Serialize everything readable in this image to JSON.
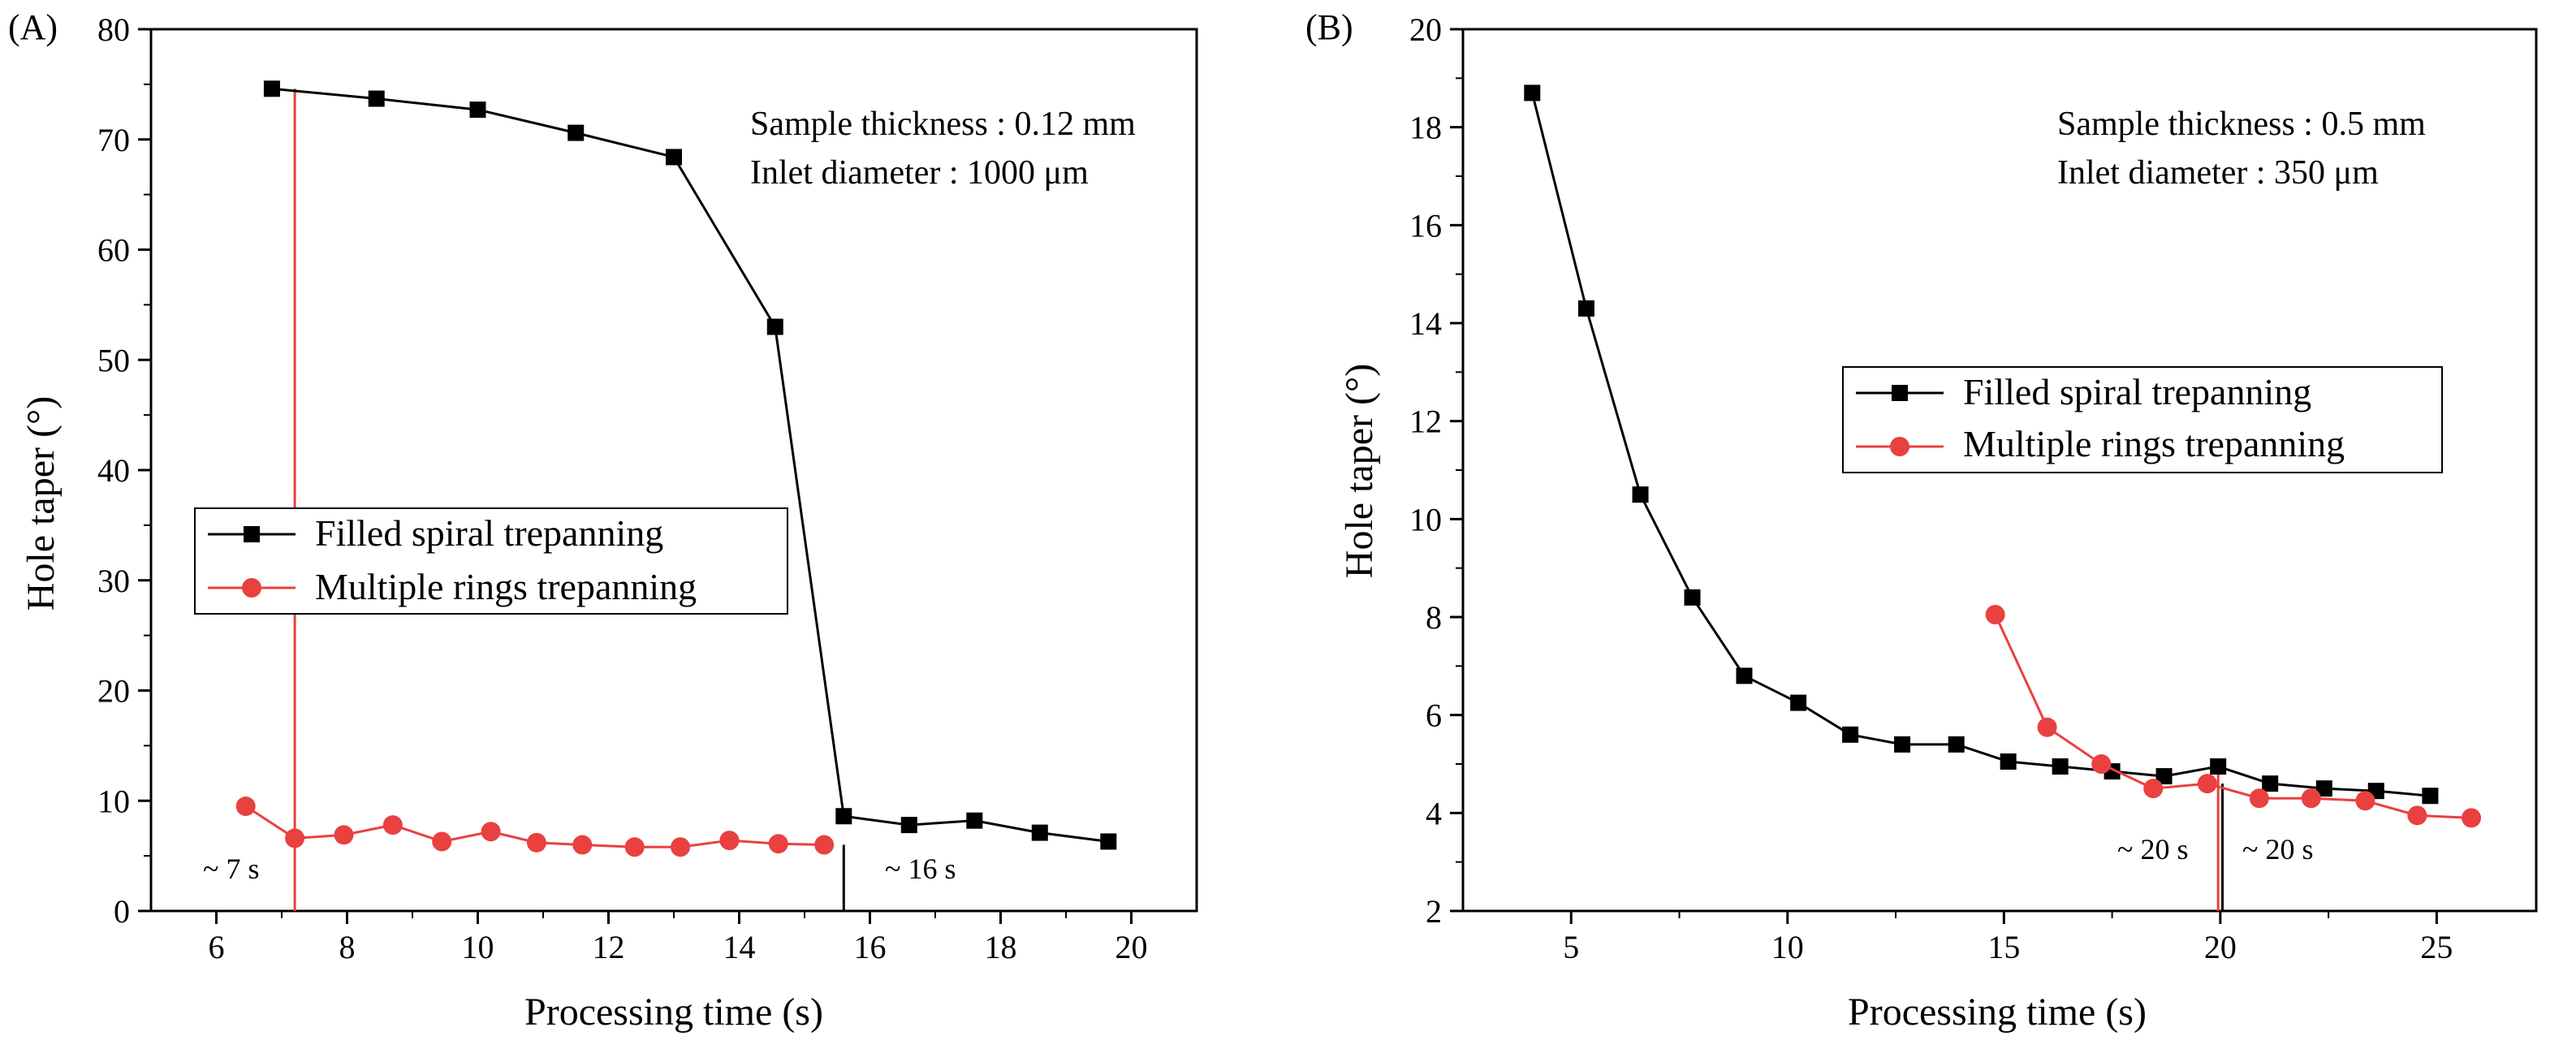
{
  "chart_data": [
    {
      "type": "line",
      "panel_label": "(A)",
      "xlabel": "Processing time (s)",
      "ylabel": "Hole taper (°)",
      "xlim": [
        5,
        21
      ],
      "ylim": [
        0,
        80
      ],
      "xticks": [
        6,
        8,
        10,
        12,
        14,
        16,
        18,
        20
      ],
      "yticks": [
        0,
        10,
        20,
        30,
        40,
        50,
        60,
        70,
        80
      ],
      "annotations": [
        "Sample thickness : 0.12 mm",
        "Inlet diameter : 1000 μm"
      ],
      "legend_position": "center-left",
      "series": [
        {
          "name": "Filled spiral trepanning",
          "color": "#000000",
          "marker": "square",
          "x": [
            6.85,
            8.45,
            10.0,
            11.5,
            13.0,
            14.55,
            15.6,
            16.6,
            17.6,
            18.6,
            19.65
          ],
          "y": [
            74.6,
            73.7,
            72.7,
            70.6,
            68.4,
            53.0,
            8.6,
            7.8,
            8.2,
            7.1,
            6.3
          ]
        },
        {
          "name": "Multiple rings trepanning",
          "color": "#e8413f",
          "marker": "circle",
          "x": [
            6.45,
            7.2,
            7.95,
            8.7,
            9.45,
            10.2,
            10.9,
            11.6,
            12.4,
            13.1,
            13.85,
            14.6,
            15.3
          ],
          "y": [
            9.5,
            6.6,
            6.9,
            7.8,
            6.3,
            7.2,
            6.2,
            6.0,
            5.8,
            5.8,
            6.4,
            6.1,
            6.0
          ]
        }
      ],
      "markers": [
        {
          "label": "~ 7 s",
          "x": 7.2,
          "color": "#e8413f"
        },
        {
          "label": "~ 16 s",
          "x": 15.6,
          "color": "#000000"
        }
      ]
    },
    {
      "type": "line",
      "panel_label": "(B)",
      "xlabel": "Processing time (s)",
      "ylabel": "Hole taper (°)",
      "xlim": [
        2.5,
        27.3
      ],
      "ylim": [
        2,
        20
      ],
      "xticks": [
        5,
        10,
        15,
        20,
        25
      ],
      "yticks": [
        2,
        4,
        6,
        8,
        10,
        12,
        14,
        16,
        18,
        20
      ],
      "annotations": [
        "Sample thickness : 0.5 mm",
        "Inlet diameter : 350 μm"
      ],
      "legend_position": "center-right",
      "series": [
        {
          "name": "Filled spiral trepanning",
          "color": "#000000",
          "marker": "square",
          "x": [
            4.1,
            5.35,
            6.6,
            7.8,
            9.0,
            10.25,
            11.45,
            12.65,
            13.9,
            15.1,
            16.3,
            17.5,
            18.7,
            19.95,
            21.15,
            22.4,
            23.6,
            24.85
          ],
          "y": [
            18.7,
            14.3,
            10.5,
            8.4,
            6.8,
            6.25,
            5.6,
            5.4,
            5.4,
            5.05,
            4.95,
            4.85,
            4.75,
            4.95,
            4.6,
            4.5,
            4.45,
            4.35
          ]
        },
        {
          "name": "Multiple rings trepanning",
          "color": "#e8413f",
          "marker": "circle",
          "x": [
            14.8,
            16.0,
            17.25,
            18.45,
            19.7,
            20.9,
            22.1,
            23.35,
            24.55,
            25.8
          ],
          "y": [
            8.05,
            5.75,
            5.0,
            4.5,
            4.6,
            4.3,
            4.3,
            4.25,
            3.95,
            3.9
          ]
        }
      ],
      "markers": [
        {
          "label": "~ 20 s",
          "x": 19.95,
          "color": "#e8413f"
        },
        {
          "label": "~ 20 s",
          "x": 20.05,
          "color": "#000000"
        }
      ]
    }
  ]
}
